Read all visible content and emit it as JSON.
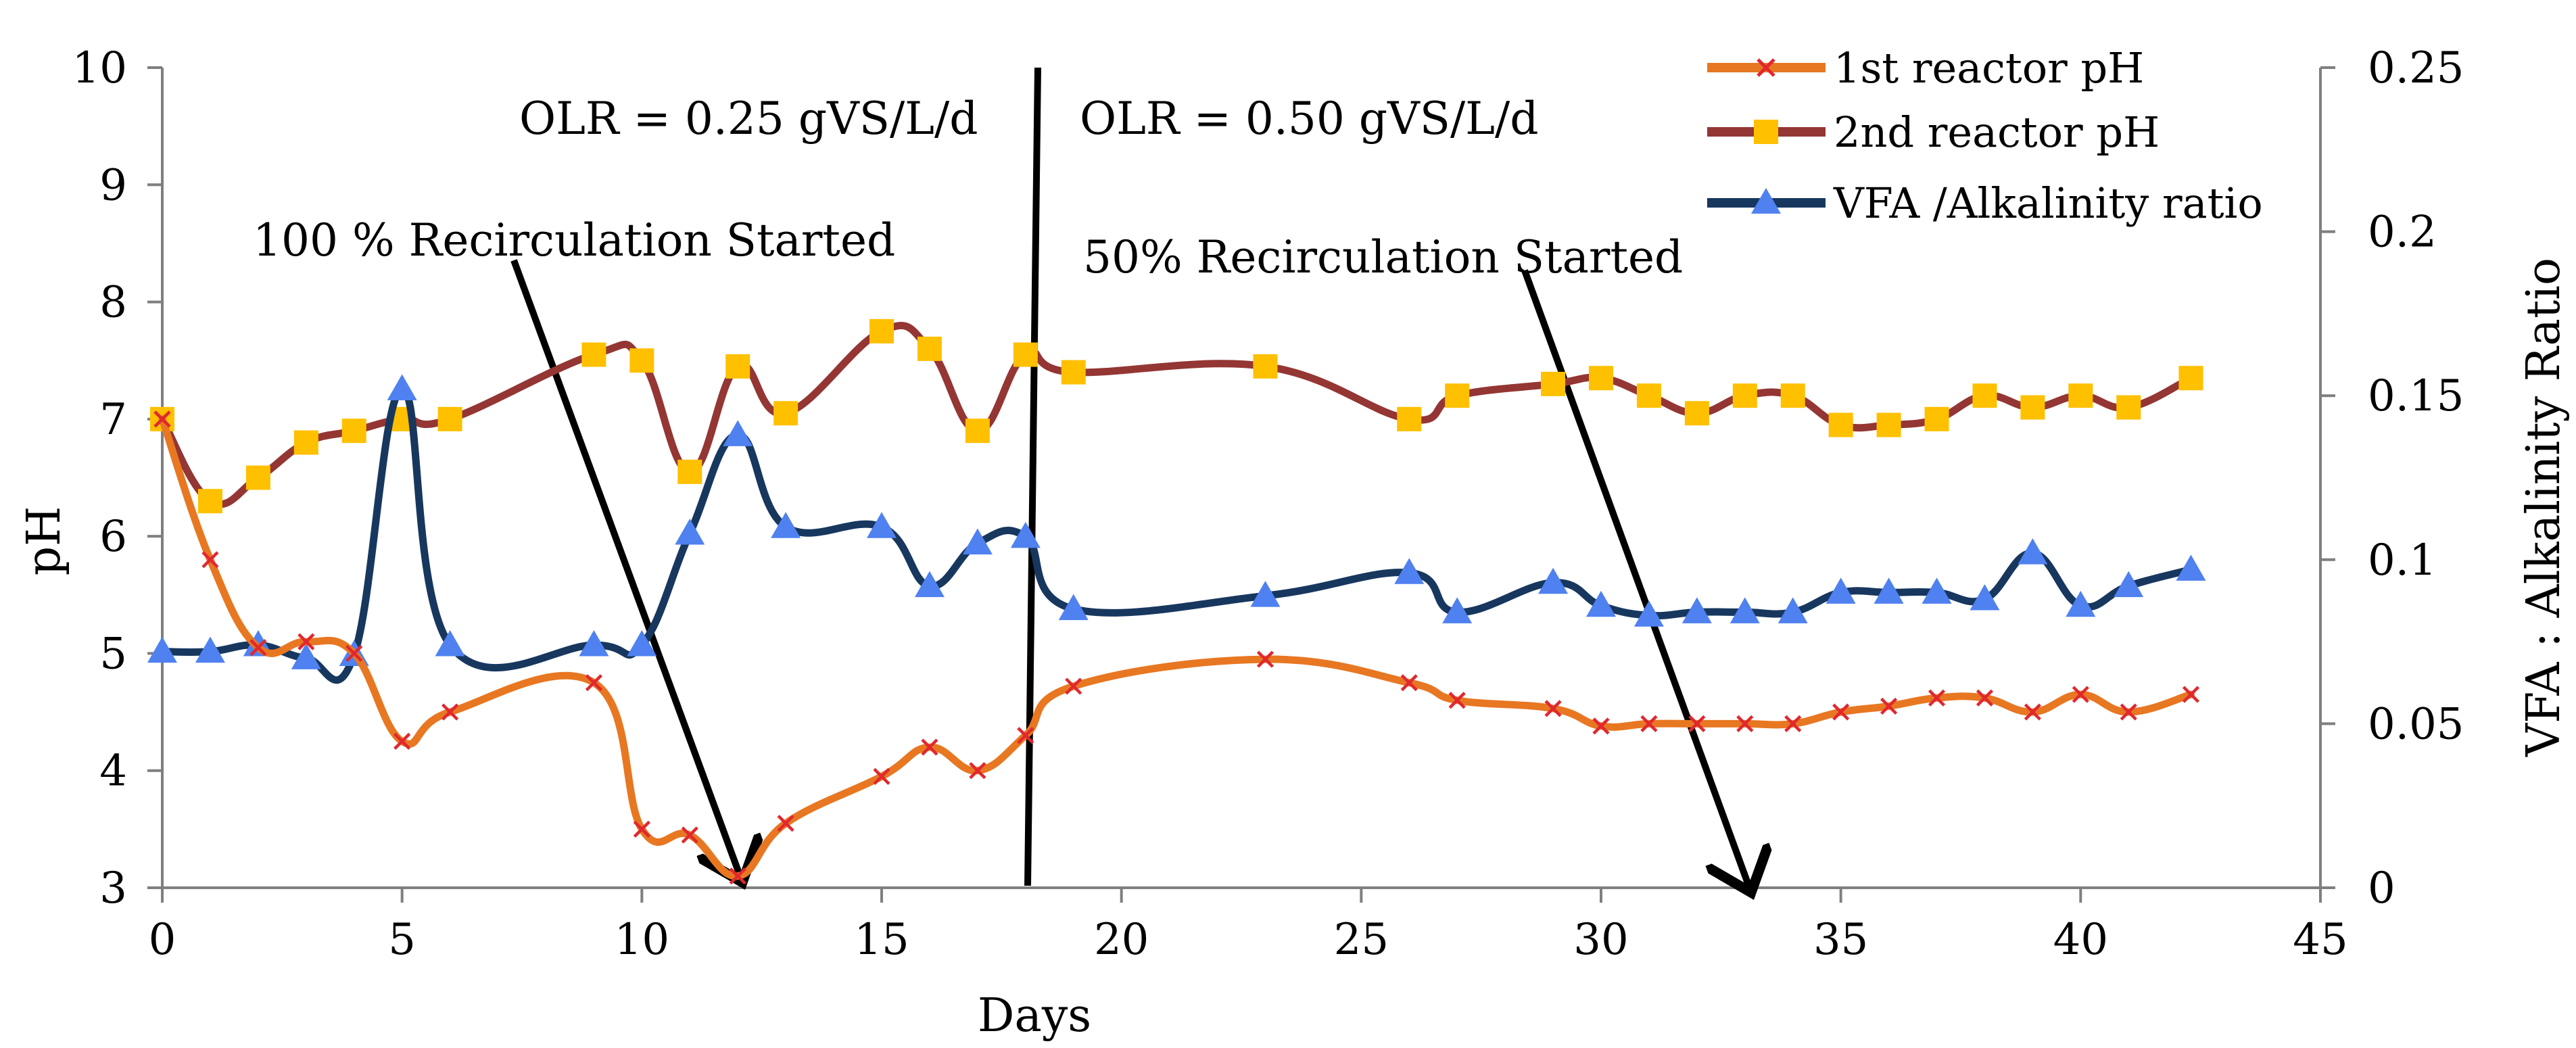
{
  "chart_data": {
    "type": "line",
    "title": "",
    "xlabel": "Days",
    "ylabel": "pH",
    "y2label": "VFA : Alkalinity Ratio",
    "xlim": [
      0,
      45
    ],
    "ylim": [
      3,
      10
    ],
    "y2lim": [
      0,
      0.25
    ],
    "x_ticks": [
      "0",
      "5",
      "10",
      "15",
      "20",
      "25",
      "30",
      "35",
      "40",
      "45"
    ],
    "y_ticks": [
      "3",
      "4",
      "5",
      "6",
      "7",
      "8",
      "9",
      "10"
    ],
    "y2_ticks": [
      "0",
      "0.05",
      "0.1",
      "0.15",
      "0.2",
      "0.25"
    ],
    "grid": false,
    "legend_position": "top-right",
    "series": [
      {
        "name": "1st reactor pH",
        "axis": "left",
        "color": "#E87722",
        "line_color": "#E87722",
        "marker": "x",
        "marker_color": "#E0282E",
        "x": [
          0,
          1,
          2,
          3,
          4,
          5,
          6,
          9,
          10,
          11,
          12,
          13,
          15,
          16,
          17,
          18,
          19,
          23,
          26,
          27,
          29,
          30,
          31,
          32,
          33,
          34,
          35,
          36,
          37,
          38,
          39,
          40,
          41,
          42.3
        ],
        "values": [
          7.0,
          5.8,
          5.05,
          5.1,
          5.0,
          4.25,
          4.5,
          4.75,
          3.5,
          3.45,
          3.1,
          3.55,
          3.95,
          4.2,
          4.0,
          4.3,
          4.72,
          4.95,
          4.75,
          4.6,
          4.53,
          4.38,
          4.4,
          4.4,
          4.4,
          4.4,
          4.5,
          4.55,
          4.62,
          4.62,
          4.5,
          4.65,
          4.5,
          4.65
        ]
      },
      {
        "name": "2nd reactor pH",
        "axis": "left",
        "color": "#943634",
        "line_color": "#943634",
        "marker": "square",
        "marker_color": "#FFC000",
        "x": [
          0,
          1,
          2,
          3,
          4,
          5,
          6,
          9,
          10,
          11,
          12,
          13,
          15,
          16,
          17,
          18,
          19,
          23,
          26,
          27,
          29,
          30,
          31,
          32,
          33,
          34,
          35,
          36,
          37,
          38,
          39,
          40,
          41,
          42.3
        ],
        "values": [
          7.0,
          6.3,
          6.5,
          6.8,
          6.9,
          7.0,
          7.0,
          7.55,
          7.5,
          6.55,
          7.45,
          7.05,
          7.75,
          7.6,
          6.9,
          7.55,
          7.4,
          7.45,
          7.0,
          7.2,
          7.3,
          7.35,
          7.2,
          7.05,
          7.2,
          7.2,
          6.95,
          6.95,
          7.0,
          7.2,
          7.1,
          7.2,
          7.1,
          7.35
        ]
      },
      {
        "name": "VFA /Alkalinity ratio",
        "axis": "right",
        "color": "#17375E",
        "line_color": "#17375E",
        "marker": "triangle",
        "marker_color": "#4F81F0",
        "x": [
          0,
          1,
          2,
          3,
          4,
          5,
          6,
          9,
          10,
          11,
          12,
          13,
          15,
          16,
          17,
          18,
          19,
          23,
          26,
          27,
          29,
          30,
          31,
          32,
          33,
          34,
          35,
          36,
          37,
          38,
          39,
          40,
          41,
          42.3
        ],
        "values": [
          0.072,
          0.072,
          0.074,
          0.07,
          0.071,
          0.152,
          0.074,
          0.074,
          0.074,
          0.108,
          0.138,
          0.11,
          0.11,
          0.092,
          0.105,
          0.107,
          0.085,
          0.089,
          0.096,
          0.084,
          0.093,
          0.086,
          0.083,
          0.084,
          0.084,
          0.084,
          0.09,
          0.09,
          0.09,
          0.088,
          0.102,
          0.086,
          0.092,
          0.097
        ]
      }
    ],
    "annotations": [
      {
        "id": "olr-025",
        "text": "OLR = 0.25 gVS/L/d"
      },
      {
        "id": "olr-050",
        "text": "OLR = 0.50 gVS/L/d"
      },
      {
        "id": "recirc-100",
        "text": "100 % Recirculation Started"
      },
      {
        "id": "recirc-50",
        "text": "50% Recirculation Started"
      }
    ]
  }
}
